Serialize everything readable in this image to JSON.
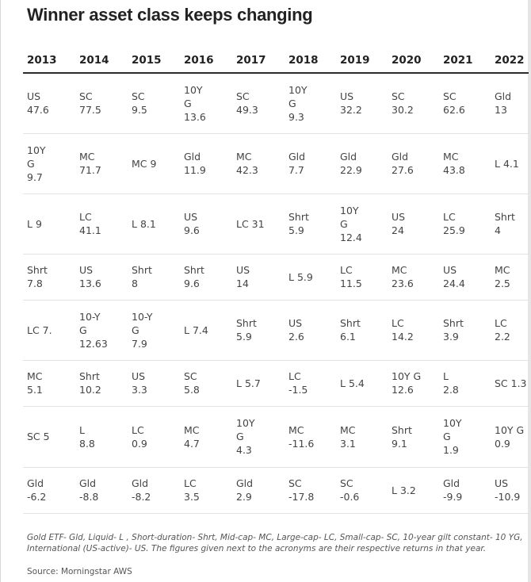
{
  "title": "Winner asset class keeps changing",
  "table": {
    "headers": [
      "2013",
      "2014",
      "2015",
      "2016",
      "2017",
      "2018",
      "2019",
      "2020",
      "2021",
      "2022"
    ],
    "rows": [
      [
        [
          "US",
          "47.6"
        ],
        [
          "SC",
          "77.5"
        ],
        [
          "SC",
          "9.5"
        ],
        [
          "10Y",
          "G",
          "13.6"
        ],
        [
          "SC",
          "49.3"
        ],
        [
          "10Y",
          "G",
          "9.3"
        ],
        [
          "US",
          "32.2"
        ],
        [
          "SC",
          "30.2"
        ],
        [
          "SC",
          "62.6"
        ],
        [
          "Gld",
          "13"
        ]
      ],
      [
        [
          "10Y",
          "G",
          "9.7"
        ],
        [
          "MC",
          "71.7"
        ],
        [
          "MC 9"
        ],
        [
          "Gld",
          "11.9"
        ],
        [
          "MC",
          "42.3"
        ],
        [
          "Gld",
          "7.7"
        ],
        [
          "Gld",
          "22.9"
        ],
        [
          "Gld",
          "27.6"
        ],
        [
          "MC",
          "43.8"
        ],
        [
          "L 4.1"
        ]
      ],
      [
        [
          "L 9"
        ],
        [
          "LC",
          "41.1"
        ],
        [
          "L 8.1"
        ],
        [
          "US",
          "9.6"
        ],
        [
          "LC 31"
        ],
        [
          "Shrt",
          "5.9"
        ],
        [
          "10Y",
          "G",
          "12.4"
        ],
        [
          "US",
          "24"
        ],
        [
          "LC",
          "25.9"
        ],
        [
          "Shrt",
          "4"
        ]
      ],
      [
        [
          "Shrt",
          "7.8"
        ],
        [
          "US",
          "13.6"
        ],
        [
          "Shrt",
          "8"
        ],
        [
          "Shrt",
          "9.6"
        ],
        [
          "US",
          "14"
        ],
        [
          "L 5.9"
        ],
        [
          "LC",
          "11.5"
        ],
        [
          "MC",
          "23.6"
        ],
        [
          "US",
          "24.4"
        ],
        [
          "MC",
          "2.5"
        ]
      ],
      [
        [
          "LC 7."
        ],
        [
          "10-Y",
          "G",
          "12.63"
        ],
        [
          "10-Y",
          "G",
          "7.9"
        ],
        [
          "L 7.4"
        ],
        [
          "Shrt",
          "5.9"
        ],
        [
          "US",
          "2.6"
        ],
        [
          "Shrt",
          "6.1"
        ],
        [
          "LC",
          "14.2"
        ],
        [
          "Shrt",
          "3.9"
        ],
        [
          "LC",
          "2.2"
        ]
      ],
      [
        [
          "MC",
          "5.1"
        ],
        [
          "Shrt",
          "10.2"
        ],
        [
          "US",
          "3.3"
        ],
        [
          "SC",
          "5.8"
        ],
        [
          "L 5.7"
        ],
        [
          "LC",
          "-1.5"
        ],
        [
          "L 5.4"
        ],
        [
          "10Y G",
          "12.6"
        ],
        [
          "L",
          "2.8"
        ],
        [
          "SC 1.3"
        ]
      ],
      [
        [
          "SC 5"
        ],
        [
          "L",
          "8.8"
        ],
        [
          "LC",
          "0.9"
        ],
        [
          "MC",
          "4.7"
        ],
        [
          "10Y",
          "G",
          "4.3"
        ],
        [
          "MC",
          "-11.6"
        ],
        [
          "MC",
          "3.1"
        ],
        [
          "Shrt",
          "9.1"
        ],
        [
          "10Y",
          "G",
          "1.9"
        ],
        [
          "10Y G",
          "0.9"
        ]
      ],
      [
        [
          "Gld",
          "-6.2"
        ],
        [
          "Gld",
          "-8.8"
        ],
        [
          "Gld",
          "-8.2"
        ],
        [
          "LC",
          "3.5"
        ],
        [
          "Gld",
          "2.9"
        ],
        [
          "SC",
          "-17.8"
        ],
        [
          "SC",
          "-0.6"
        ],
        [
          "L 3.2"
        ],
        [
          "Gld",
          "-9.9"
        ],
        [
          "US",
          "-10.9"
        ]
      ]
    ]
  },
  "footnote": "Gold ETF- Gld, Liquid- L , Short-duration- Shrt, Mid-cap- MC, Large-cap- LC, Small-cap- SC, 10-year gilt constant- 10 YG, International (US-active)- US. The figures given next to the acronyms are their respective returns in that year.",
  "source": "Source: Morningstar AWS"
}
